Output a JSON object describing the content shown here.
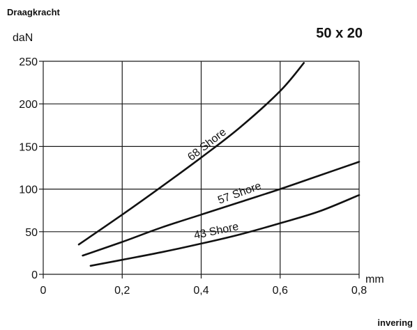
{
  "chart_data": {
    "type": "line",
    "title": "50 x 20",
    "top_label": "Draagkracht",
    "ylabel": "daN",
    "xlabel": "mm",
    "bottom_label": "invering",
    "xlim": [
      0,
      0.8
    ],
    "ylim": [
      0,
      250
    ],
    "x_ticks": [
      0,
      0.2,
      0.4,
      0.6,
      0.8
    ],
    "x_tick_labels": [
      "0",
      "0,2",
      "0,4",
      "0,6",
      "0,8"
    ],
    "y_ticks": [
      0,
      50,
      100,
      150,
      200,
      250
    ],
    "y_tick_labels": [
      "0",
      "50",
      "100",
      "150",
      "200",
      "250"
    ],
    "grid": true,
    "series": [
      {
        "name": "68 Shore",
        "x": [
          0.09,
          0.2,
          0.3,
          0.4,
          0.5,
          0.6,
          0.66
        ],
        "y": [
          35,
          70,
          103,
          137,
          173,
          215,
          248
        ]
      },
      {
        "name": "57 Shore",
        "x": [
          0.1,
          0.2,
          0.3,
          0.4,
          0.5,
          0.6,
          0.7,
          0.8
        ],
        "y": [
          22,
          38,
          55,
          70,
          85,
          100,
          116,
          132
        ]
      },
      {
        "name": "43 Shore",
        "x": [
          0.12,
          0.2,
          0.3,
          0.4,
          0.5,
          0.6,
          0.7,
          0.8
        ],
        "y": [
          10,
          17,
          26,
          36,
          47,
          60,
          74,
          93
        ]
      }
    ]
  }
}
